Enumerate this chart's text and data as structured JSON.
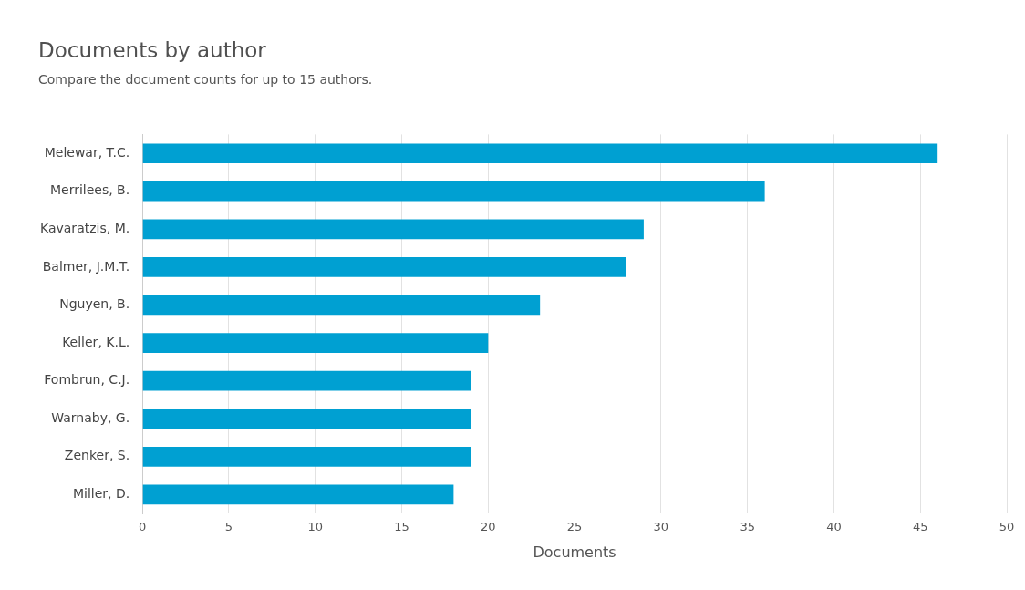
{
  "chart_data": {
    "type": "bar",
    "orientation": "horizontal",
    "title": "Documents by author",
    "subtitle": "Compare the document counts for up to 15 authors.",
    "xlabel": "Documents",
    "categories": [
      "Melewar, T.C.",
      "Merrilees, B.",
      "Kavaratzis, M.",
      "Balmer, J.M.T.",
      "Nguyen, B.",
      "Keller, K.L.",
      "Fombrun, C.J.",
      "Warnaby, G.",
      "Zenker, S.",
      "Miller, D."
    ],
    "values": [
      46,
      36,
      29,
      28,
      23,
      20,
      19,
      19,
      19,
      18
    ],
    "color": "#00a0d2",
    "xlim": [
      0,
      50
    ],
    "xticks": [
      0,
      5,
      10,
      15,
      20,
      25,
      30,
      35,
      40,
      45,
      50
    ],
    "grid": "x"
  }
}
